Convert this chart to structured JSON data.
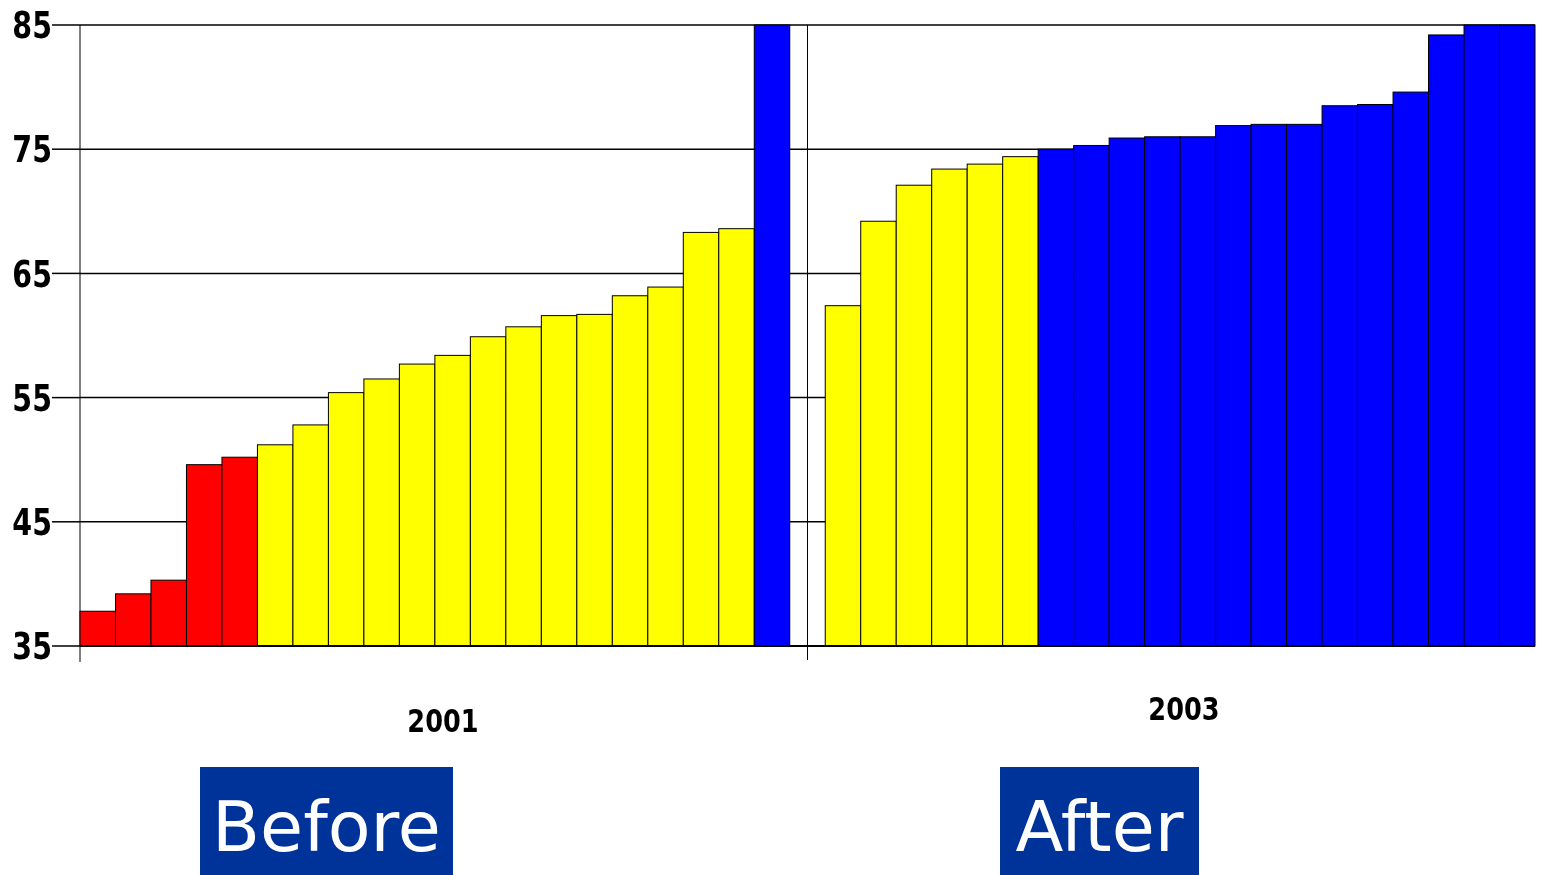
{
  "chart_data": {
    "type": "bar",
    "annotations": [
      "2001",
      "2003",
      "Before",
      "After"
    ],
    "categories": [
      null,
      null,
      null,
      null,
      null,
      null,
      null,
      null,
      null,
      null,
      null,
      null,
      null,
      null,
      null,
      null,
      null,
      null,
      null,
      null,
      null,
      null,
      null,
      null,
      null,
      null,
      null,
      null,
      null,
      null,
      null,
      null,
      null,
      null,
      null,
      null,
      null,
      null,
      null,
      null,
      null
    ],
    "values": [
      37.8,
      39.2,
      40.3,
      49.6,
      50.2,
      51.2,
      52.8,
      55.4,
      56.5,
      57.7,
      58.4,
      59.9,
      60.7,
      61.6,
      61.7,
      63.2,
      63.9,
      68.3,
      68.6,
      85,
      null,
      62.4,
      69.2,
      72.1,
      73.4,
      73.8,
      74.4,
      75.0,
      75.3,
      75.9,
      76.0,
      76.0,
      76.9,
      77.0,
      77.0,
      78.5,
      78.6,
      79.6,
      84.2,
      85,
      85
    ],
    "colors": [
      "#ff0000",
      "#ff0000",
      "#ff0000",
      "#ff0000",
      "#ff0000",
      "#ffff00",
      "#ffff00",
      "#ffff00",
      "#ffff00",
      "#ffff00",
      "#ffff00",
      "#ffff00",
      "#ffff00",
      "#ffff00",
      "#ffff00",
      "#ffff00",
      "#ffff00",
      "#ffff00",
      "#ffff00",
      "#0000ff",
      null,
      "#ffff00",
      "#ffff00",
      "#ffff00",
      "#ffff00",
      "#ffff00",
      "#ffff00",
      "#0000ff",
      "#0000ff",
      "#0000ff",
      "#0000ff",
      "#0000ff",
      "#0000ff",
      "#0000ff",
      "#0000ff",
      "#0000ff",
      "#0000ff",
      "#0000ff",
      "#0000ff",
      "#0000ff",
      "#0000ff"
    ],
    "ylim": [
      35,
      85
    ],
    "yticks": [
      35,
      45,
      55,
      65,
      75,
      85
    ],
    "grid": "y",
    "tick_labels": "y"
  }
}
